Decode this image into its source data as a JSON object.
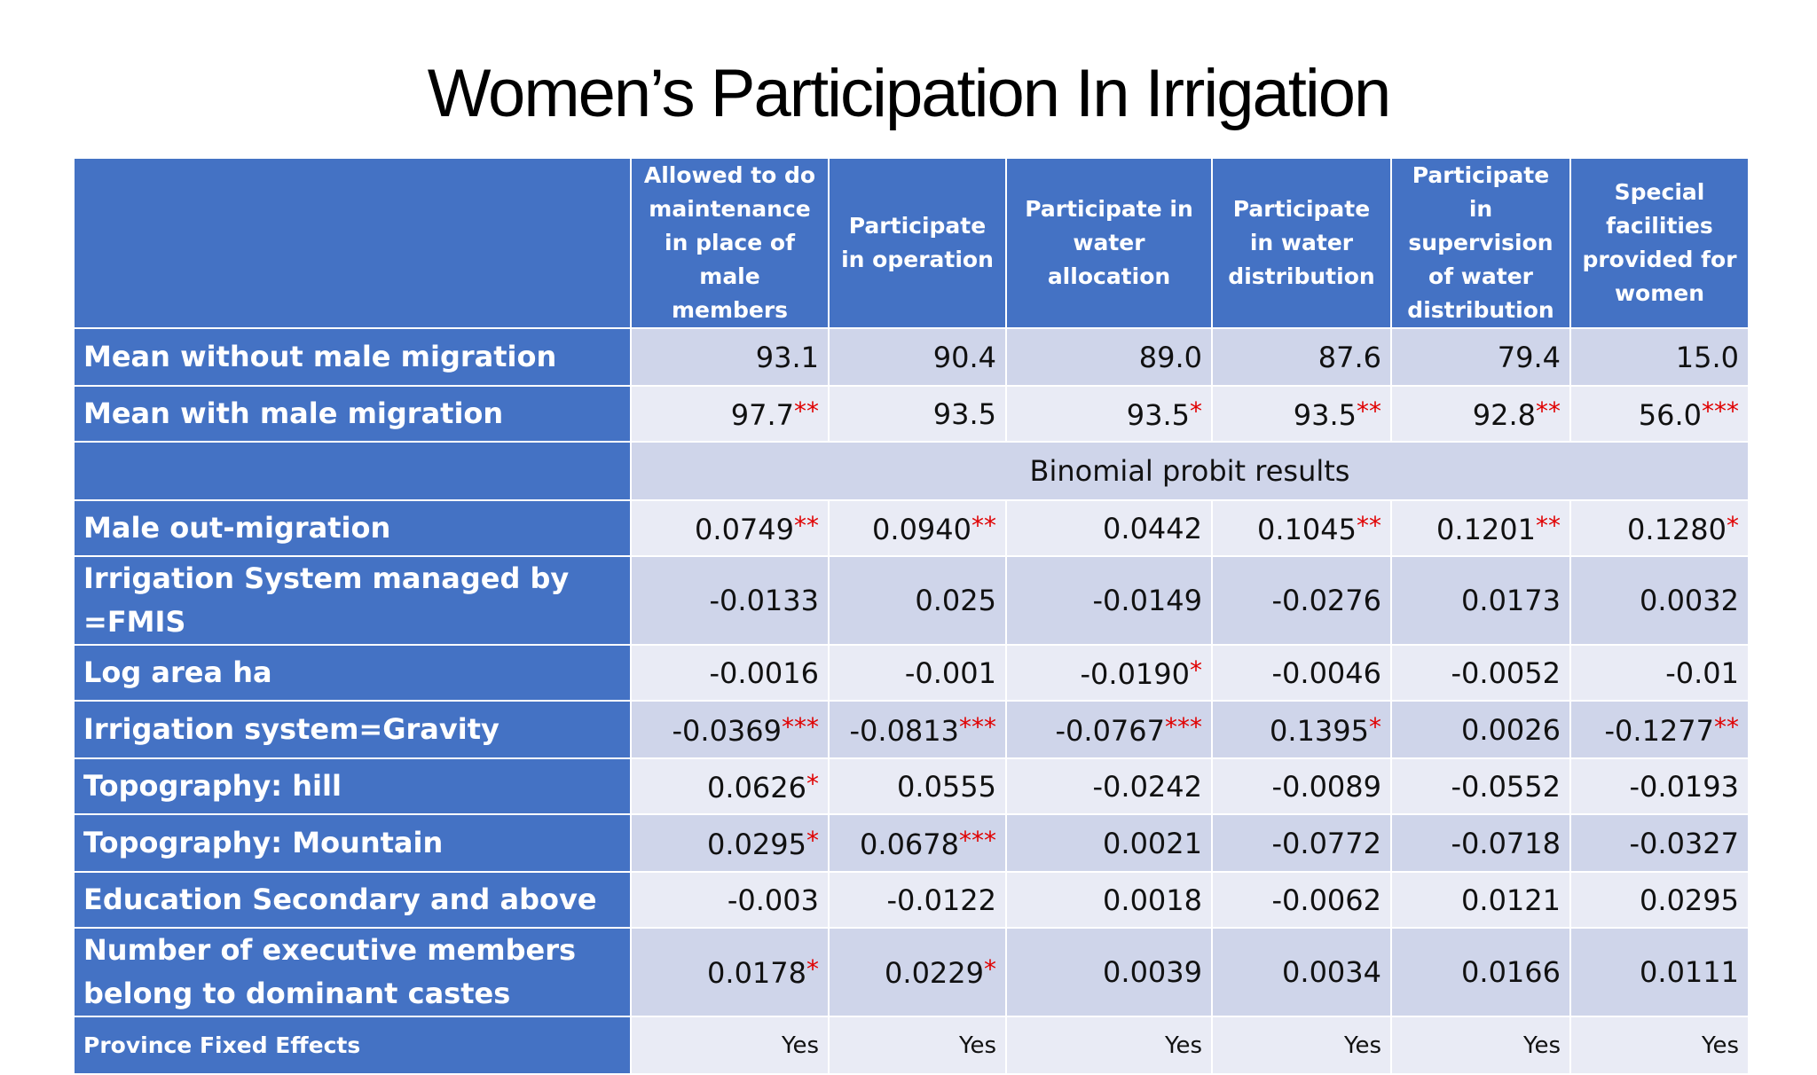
{
  "title": "Women’s Participation In Irrigation",
  "table": {
    "header": [
      "Allowed to do maintenance in place of male members",
      "Participate in operation",
      "Participate in water allocation",
      "Participate in water distribution",
      "Participate in supervision of water distribution",
      "Special facilities provided for women"
    ],
    "rows": [
      {
        "label": "Mean without male migration",
        "cells": [
          "93.1",
          "90.4",
          "89.0",
          "87.6",
          "79.4",
          "15.0"
        ]
      },
      {
        "label": "Mean with male migration",
        "cells": [
          {
            "text": "97.7",
            "sig": "**"
          },
          "93.5",
          {
            "text": "93.5",
            "sig": "*"
          },
          {
            "text": "93.5",
            "sig": "**"
          },
          {
            "text": "92.8",
            "sig": "**"
          },
          {
            "text": "56.0",
            "sig": "***"
          }
        ]
      },
      {
        "note": "Binomial probit results"
      },
      {
        "label": "Male out-migration",
        "cells": [
          {
            "text": "0.0749",
            "sig": "**"
          },
          {
            "text": "0.0940",
            "sig": "**"
          },
          "0.0442",
          {
            "text": "0.1045",
            "sig": "**"
          },
          {
            "text": "0.1201",
            "sig": "**"
          },
          {
            "text": "0.1280",
            "sig": "*"
          }
        ]
      },
      {
        "label": "Irrigation System managed by =FMIS",
        "cells": [
          "-0.0133",
          "0.025",
          "-0.0149",
          "-0.0276",
          "0.0173",
          "0.0032"
        ]
      },
      {
        "label": "Log area ha",
        "cells": [
          "-0.0016",
          "-0.001",
          {
            "text": "-0.0190",
            "sig": "*"
          },
          "-0.0046",
          "-0.0052",
          "-0.01"
        ]
      },
      {
        "label": "Irrigation system=Gravity",
        "cells": [
          {
            "text": "-0.0369",
            "sig": "***"
          },
          {
            "text": "-0.0813",
            "sig": "***"
          },
          {
            "text": "-0.0767",
            "sig": "***"
          },
          {
            "text": "0.1395",
            "sig": "*"
          },
          "0.0026",
          {
            "text": "-0.1277",
            "sig": "**"
          }
        ]
      },
      {
        "label": "Topography:  hill",
        "cells": [
          {
            "text": "0.0626",
            "sig": "*"
          },
          "0.0555",
          "-0.0242",
          "-0.0089",
          "-0.0552",
          "-0.0193"
        ]
      },
      {
        "label": "Topography:  Mountain",
        "cells": [
          {
            "text": "0.0295",
            "sig": "*"
          },
          {
            "text": "0.0678",
            "sig": "***"
          },
          "0.0021",
          "-0.0772",
          "-0.0718",
          "-0.0327"
        ]
      },
      {
        "label": "Education Secondary and above",
        "cells": [
          "-0.003",
          "-0.0122",
          "0.0018",
          "-0.0062",
          "0.0121",
          "0.0295"
        ]
      },
      {
        "label": "Number of executive members belong to dominant castes",
        "cells": [
          {
            "text": "0.0178",
            "sig": "*"
          },
          {
            "text": "0.0229",
            "sig": "*"
          },
          "0.0039",
          "0.0034",
          "0.0166",
          "0.0111"
        ]
      },
      {
        "label": "Province Fixed Effects",
        "small": true,
        "cells": [
          "Yes",
          "Yes",
          "Yes",
          "Yes",
          "Yes",
          "Yes"
        ]
      }
    ]
  }
}
